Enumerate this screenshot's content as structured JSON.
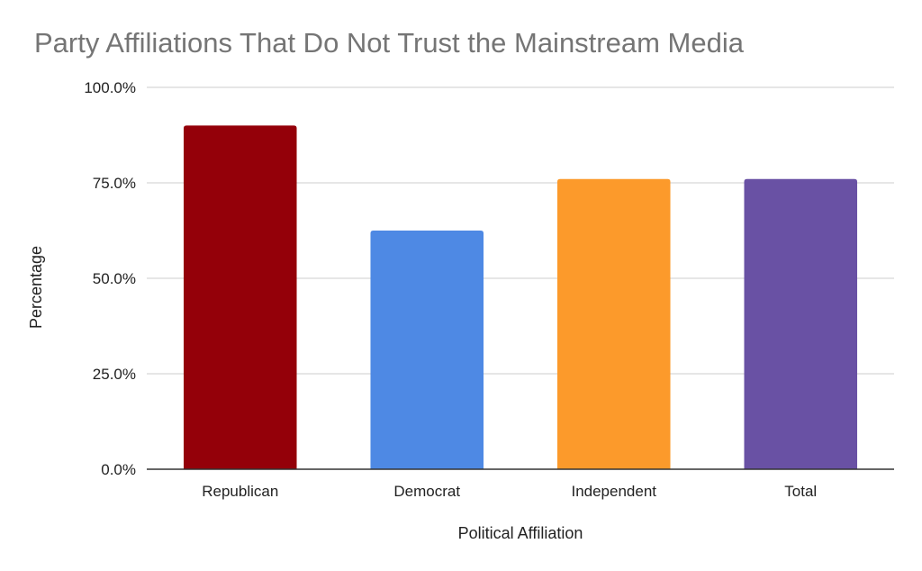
{
  "chart_data": {
    "type": "bar",
    "title": "Party Affiliations That Do Not Trust the Mainstream Media",
    "xlabel": "Political Affiliation",
    "ylabel": "Percentage",
    "categories": [
      "Republican",
      "Democrat",
      "Independent",
      "Total"
    ],
    "values": [
      90.0,
      62.5,
      76.0,
      76.0
    ],
    "ylim": [
      0,
      100
    ],
    "yticks": [
      0,
      25,
      50,
      75,
      100
    ],
    "ytick_labels": [
      "0.0%",
      "25.0%",
      "50.0%",
      "75.0%",
      "100.0%"
    ],
    "colors": [
      "#940009",
      "#4e89e4",
      "#fc9a2b",
      "#6951a4"
    ],
    "grid": true,
    "legend": "none"
  }
}
